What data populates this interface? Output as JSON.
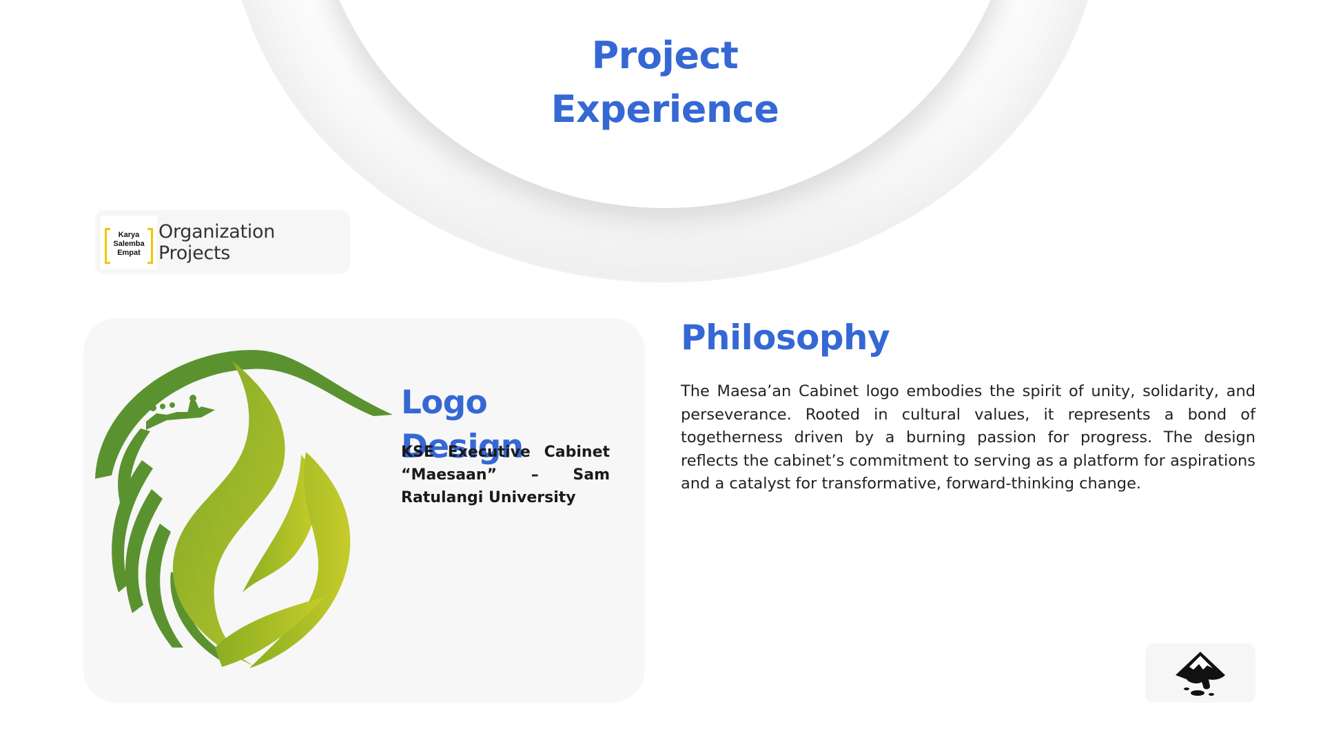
{
  "header": {
    "title_line1": "Project",
    "title_line2": "Experience"
  },
  "org_chip": {
    "logo_text_1": "Karya",
    "logo_text_2": "Salemba",
    "logo_text_3": "Empat",
    "label": "Organization Projects"
  },
  "project": {
    "title": "Logo Design",
    "subtitle": "KSE Executive Cabinet “Maesaan” – Sam Ratulangi University"
  },
  "philosophy": {
    "title": "Philosophy",
    "body": "The Maesa’an Cabinet logo embodies the spirit of unity, solidarity, and perseverance. Rooted in cultural values, it represents a bond of togetherness driven by a burning passion for progress. The design reflects the cabinet’s commitment to serving as a platform for aspirations and a catalyst for transformative, forward-thinking change."
  },
  "colors": {
    "accent": "#3568d4",
    "logo_green_dark": "#5a8f2a",
    "logo_green_light": "#c2cc2a",
    "org_bracket": "#f2c500"
  },
  "icons": {
    "tool": "inkscape-icon"
  }
}
